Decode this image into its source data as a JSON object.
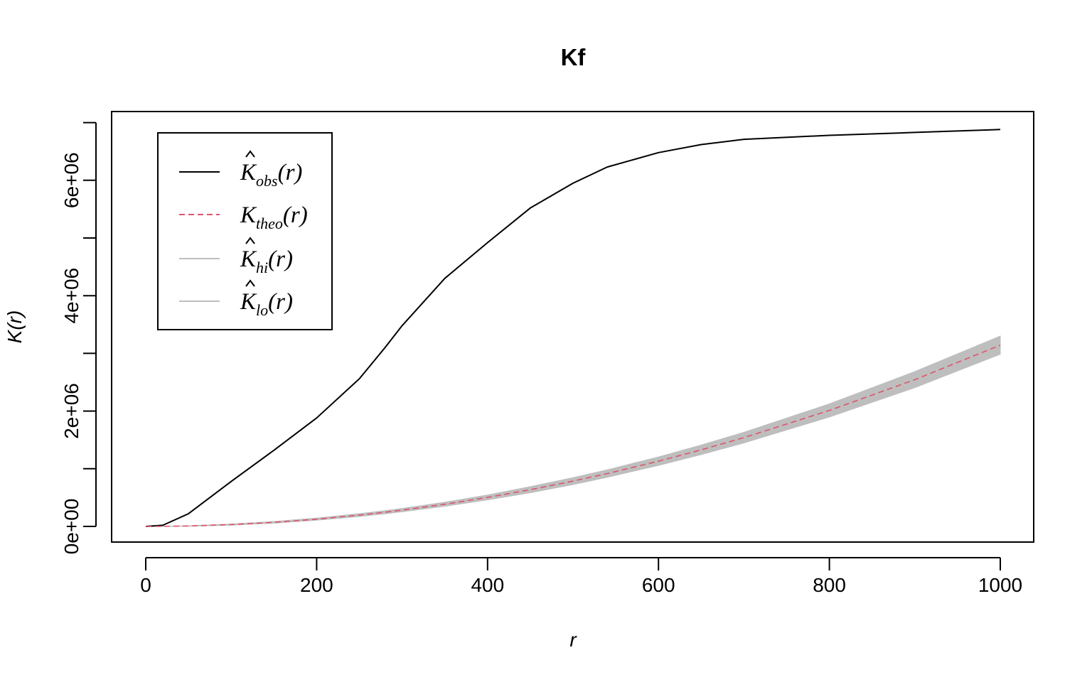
{
  "chart_data": {
    "type": "line",
    "title": "Kf",
    "xlabel": "r",
    "ylabel": "K(r)",
    "xlim": [
      0,
      1000
    ],
    "ylim": [
      0,
      6900000
    ],
    "x_ticks": [
      {
        "value": 0,
        "label": "0"
      },
      {
        "value": 200,
        "label": "200"
      },
      {
        "value": 400,
        "label": "400"
      },
      {
        "value": 600,
        "label": "600"
      },
      {
        "value": 800,
        "label": "800"
      },
      {
        "value": 1000,
        "label": "1000"
      }
    ],
    "y_ticks": [
      {
        "value": 0,
        "label": "0e+00"
      },
      {
        "value": 1000000,
        "label": ""
      },
      {
        "value": 2000000,
        "label": "2e+06"
      },
      {
        "value": 3000000,
        "label": ""
      },
      {
        "value": 4000000,
        "label": "4e+06"
      },
      {
        "value": 5000000,
        "label": ""
      },
      {
        "value": 6000000,
        "label": "6e+06"
      },
      {
        "value": 7000000,
        "label": ""
      }
    ],
    "grid": false,
    "legend_position": "top-left",
    "x": [
      0,
      20,
      50,
      100,
      150,
      200,
      250,
      280,
      300,
      350,
      400,
      450,
      500,
      540,
      600,
      650,
      700,
      800,
      900,
      1000
    ],
    "series": [
      {
        "name": "obs",
        "style": "solid",
        "color": "#000000",
        "values": [
          0,
          20000,
          220000,
          780000,
          1320000,
          1880000,
          2560000,
          3100000,
          3480000,
          4300000,
          4920000,
          5520000,
          5950000,
          6230000,
          6480000,
          6620000,
          6710000,
          6780000,
          6830000,
          6880000
        ]
      },
      {
        "name": "theo",
        "style": "dashed",
        "color": "#DF536B",
        "values": [
          0,
          1257,
          7854,
          31416,
          70686,
          125664,
          196350,
          246301,
          282743,
          384845,
          502655,
          636173,
          785398,
          916088,
          1130973,
          1327323,
          1539380,
          2010619,
          2544690,
          3141593
        ]
      }
    ],
    "envelope": {
      "name_hi": "hi",
      "name_lo": "lo",
      "color": "#BEBEBE",
      "hi": [
        1000,
        2500,
        12000,
        42000,
        86000,
        145000,
        222000,
        274000,
        312000,
        420000,
        545000,
        690000,
        845000,
        982000,
        1205000,
        1410000,
        1632000,
        2125000,
        2685000,
        3300000
      ],
      "lo": [
        0,
        0,
        4000,
        22000,
        57000,
        108000,
        172000,
        219000,
        254000,
        350000,
        460000,
        584000,
        725000,
        851000,
        1058000,
        1245000,
        1447000,
        1897000,
        2405000,
        2985000
      ]
    },
    "legend": [
      {
        "base": "K",
        "sub": "obs",
        "arg": "(r)",
        "hat": true,
        "style": "solid",
        "color": "#000000"
      },
      {
        "base": "K",
        "sub": "theo",
        "arg": "(r)",
        "hat": false,
        "style": "dashed",
        "color": "#DF536B"
      },
      {
        "base": "K",
        "sub": "hi",
        "arg": "(r)",
        "hat": true,
        "style": "solid",
        "color": "#BEBEBE"
      },
      {
        "base": "K",
        "sub": "lo",
        "arg": "(r)",
        "hat": true,
        "style": "solid",
        "color": "#BEBEBE"
      }
    ]
  }
}
